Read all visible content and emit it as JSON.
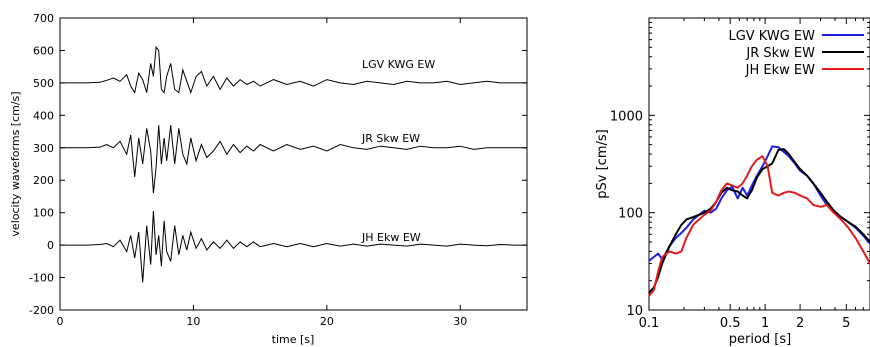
{
  "chart_data": [
    {
      "type": "line",
      "xlabel": "time [s]",
      "ylabel": "velocity waveforms [cm/s]",
      "xlim": [
        0,
        35
      ],
      "ylim": [
        -200,
        700
      ],
      "x_ticks": [
        0,
        10,
        20,
        30
      ],
      "y_ticks": [
        -200,
        -100,
        0,
        100,
        200,
        300,
        400,
        500,
        600,
        700
      ],
      "series": [
        {
          "name": "LGV KWG EW",
          "offset": 500,
          "color": "#000000",
          "x": [
            0,
            1,
            2,
            3,
            3.5,
            4,
            4.5,
            5,
            5.3,
            5.6,
            5.9,
            6.2,
            6.5,
            6.8,
            7.0,
            7.2,
            7.4,
            7.6,
            7.8,
            8.0,
            8.3,
            8.6,
            8.9,
            9.2,
            9.5,
            9.8,
            10.2,
            10.6,
            11.0,
            11.5,
            12,
            12.5,
            13,
            13.5,
            14,
            14.5,
            15,
            16,
            17,
            18,
            19,
            20,
            21,
            22,
            23,
            24,
            25,
            26,
            27,
            28,
            29,
            30,
            31,
            32,
            33,
            34,
            35
          ],
          "y": [
            500,
            500,
            500,
            502,
            508,
            515,
            505,
            525,
            490,
            470,
            530,
            510,
            470,
            560,
            520,
            610,
            600,
            480,
            470,
            520,
            560,
            480,
            470,
            540,
            505,
            470,
            520,
            535,
            490,
            520,
            480,
            515,
            490,
            510,
            495,
            505,
            490,
            510,
            495,
            505,
            490,
            510,
            500,
            495,
            505,
            500,
            495,
            505,
            500,
            500,
            505,
            495,
            500,
            505,
            500,
            500,
            500
          ]
        },
        {
          "name": "JR Skw EW",
          "offset": 300,
          "color": "#000000",
          "x": [
            0,
            1,
            2,
            3,
            3.5,
            4,
            4.5,
            5,
            5.3,
            5.6,
            5.9,
            6.2,
            6.5,
            6.8,
            7.0,
            7.2,
            7.4,
            7.6,
            7.8,
            8.0,
            8.3,
            8.6,
            8.9,
            9.2,
            9.5,
            9.8,
            10.2,
            10.6,
            11.0,
            11.5,
            12,
            12.5,
            13,
            13.5,
            14,
            14.5,
            15,
            16,
            17,
            18,
            19,
            20,
            21,
            22,
            23,
            24,
            25,
            26,
            27,
            28,
            29,
            30,
            31,
            32,
            33,
            34,
            35
          ],
          "y": [
            300,
            300,
            300,
            302,
            310,
            300,
            320,
            280,
            340,
            210,
            330,
            250,
            360,
            290,
            160,
            240,
            370,
            250,
            330,
            260,
            370,
            250,
            360,
            280,
            250,
            330,
            260,
            310,
            270,
            290,
            320,
            280,
            310,
            285,
            305,
            290,
            310,
            290,
            310,
            295,
            305,
            290,
            310,
            300,
            295,
            305,
            300,
            295,
            305,
            300,
            300,
            305,
            295,
            300,
            300,
            300,
            300
          ]
        },
        {
          "name": "JH Ekw EW",
          "offset": 0,
          "color": "#000000",
          "x": [
            0,
            1,
            2,
            3,
            3.5,
            4,
            4.5,
            5,
            5.3,
            5.6,
            5.9,
            6.2,
            6.5,
            6.8,
            7.0,
            7.2,
            7.4,
            7.6,
            7.8,
            8.0,
            8.3,
            8.6,
            8.9,
            9.2,
            9.5,
            9.8,
            10.2,
            10.6,
            11.0,
            11.5,
            12,
            12.5,
            13,
            13.5,
            14,
            14.5,
            15,
            16,
            17,
            18,
            19,
            20,
            21,
            22,
            23,
            24,
            25,
            26,
            27,
            28,
            29,
            30,
            31,
            32,
            33,
            34,
            35
          ],
          "y": [
            0,
            0,
            0,
            2,
            5,
            -5,
            15,
            -20,
            30,
            -40,
            40,
            -115,
            60,
            -60,
            105,
            -30,
            30,
            -65,
            75,
            -20,
            -50,
            60,
            -30,
            30,
            -15,
            40,
            -10,
            20,
            -15,
            10,
            -10,
            15,
            -10,
            10,
            -5,
            10,
            -5,
            5,
            -5,
            5,
            -5,
            5,
            -3,
            3,
            -3,
            3,
            0,
            -3,
            3,
            0,
            -3,
            3,
            0,
            -2,
            2,
            0,
            0
          ]
        }
      ],
      "trace_labels": [
        "LGV KWG EW",
        "JR Skw EW",
        "JH Ekw EW"
      ]
    },
    {
      "type": "line",
      "xlabel": "period [s]",
      "ylabel": "pSv [cm/s]",
      "log_x": true,
      "log_y": true,
      "xlim": [
        0.1,
        8
      ],
      "ylim": [
        10,
        10000
      ],
      "x_ticks": [
        0.1,
        0.5,
        1,
        2,
        5
      ],
      "x_tick_labels": [
        "0.1",
        "0.5",
        "1",
        "2",
        "5"
      ],
      "y_ticks": [
        10,
        100,
        1000
      ],
      "y_tick_labels": [
        "10",
        "100",
        "1000"
      ],
      "legend_position": "top-right",
      "series": [
        {
          "name": "LGV KWG EW",
          "color": "#1f1fe6",
          "x": [
            0.1,
            0.11,
            0.12,
            0.13,
            0.15,
            0.17,
            0.19,
            0.21,
            0.24,
            0.27,
            0.3,
            0.34,
            0.38,
            0.42,
            0.47,
            0.52,
            0.58,
            0.64,
            0.7,
            0.77,
            0.85,
            0.95,
            1.05,
            1.15,
            1.3,
            1.45,
            1.6,
            1.8,
            2.0,
            2.3,
            2.6,
            3.0,
            3.4,
            3.9,
            4.5,
            5.2,
            6.0,
            7.0,
            8.0
          ],
          "y": [
            32,
            35,
            38,
            33,
            45,
            55,
            62,
            70,
            85,
            95,
            105,
            100,
            110,
            140,
            170,
            185,
            140,
            180,
            150,
            190,
            240,
            300,
            380,
            480,
            470,
            420,
            380,
            320,
            270,
            240,
            200,
            150,
            120,
            100,
            90,
            80,
            70,
            58,
            48
          ]
        },
        {
          "name": "JR Skw EW",
          "color": "#000000",
          "x": [
            0.1,
            0.11,
            0.12,
            0.13,
            0.15,
            0.17,
            0.19,
            0.21,
            0.24,
            0.27,
            0.3,
            0.34,
            0.38,
            0.42,
            0.47,
            0.52,
            0.58,
            0.64,
            0.7,
            0.77,
            0.85,
            0.95,
            1.05,
            1.15,
            1.3,
            1.45,
            1.6,
            1.8,
            2.0,
            2.3,
            2.6,
            3.0,
            3.4,
            3.9,
            4.5,
            5.2,
            6.0,
            7.0,
            8.0
          ],
          "y": [
            15,
            17,
            22,
            30,
            45,
            60,
            75,
            85,
            90,
            95,
            100,
            110,
            130,
            160,
            180,
            170,
            165,
            150,
            140,
            170,
            230,
            280,
            300,
            320,
            440,
            450,
            400,
            330,
            280,
            240,
            200,
            160,
            130,
            105,
            90,
            80,
            72,
            60,
            50
          ]
        },
        {
          "name": "JH Ekw EW",
          "color": "#e61a1a",
          "x": [
            0.1,
            0.11,
            0.12,
            0.13,
            0.15,
            0.17,
            0.19,
            0.21,
            0.24,
            0.27,
            0.3,
            0.34,
            0.38,
            0.42,
            0.47,
            0.52,
            0.58,
            0.64,
            0.7,
            0.77,
            0.85,
            0.95,
            1.05,
            1.15,
            1.3,
            1.45,
            1.6,
            1.8,
            2.0,
            2.3,
            2.6,
            3.0,
            3.4,
            3.9,
            4.5,
            5.2,
            6.0,
            7.0,
            8.0
          ],
          "y": [
            14,
            16,
            25,
            35,
            40,
            38,
            40,
            55,
            75,
            85,
            95,
            105,
            130,
            170,
            200,
            190,
            180,
            200,
            240,
            300,
            350,
            380,
            300,
            160,
            150,
            160,
            165,
            160,
            150,
            140,
            120,
            115,
            120,
            100,
            85,
            70,
            55,
            40,
            30
          ]
        }
      ]
    }
  ]
}
